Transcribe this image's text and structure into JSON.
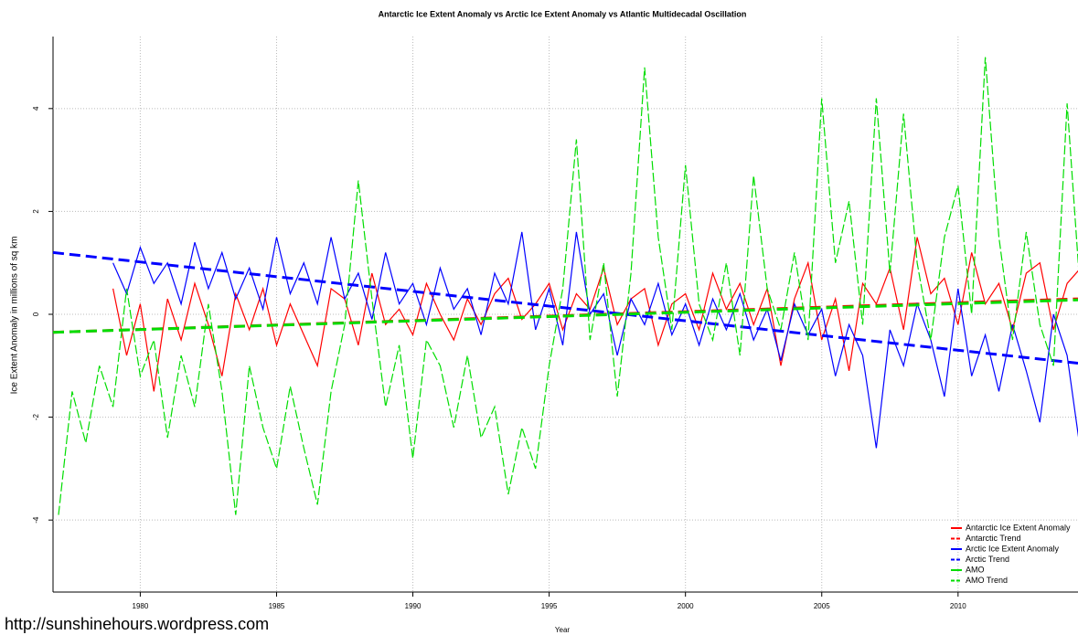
{
  "chart_data": {
    "type": "line",
    "title": "Antarctic Ice Extent Anomaly vs Arctic Ice Extent Anomaly vs Atlantic Multidecadal Oscillation",
    "xlabel": "Year",
    "ylabel": "Ice Extent Anomaly in millions of sq km",
    "annotation": "http://sunshinehours.wordpress.com",
    "xlim": [
      1976.8,
      2014.4
    ],
    "ylim": [
      -5.4,
      5.4
    ],
    "xticks": [
      1980,
      1985,
      1990,
      1995,
      2000,
      2005,
      2010
    ],
    "yticks": [
      -4,
      -2,
      0,
      2,
      4
    ],
    "grid": true,
    "legend": "bottom-right",
    "x": [
      1977,
      1977.5,
      1978,
      1978.5,
      1979,
      1979.5,
      1980,
      1980.5,
      1981,
      1981.5,
      1982,
      1982.5,
      1983,
      1983.5,
      1984,
      1984.5,
      1985,
      1985.5,
      1986,
      1986.5,
      1987,
      1987.5,
      1988,
      1988.5,
      1989,
      1989.5,
      1990,
      1990.5,
      1991,
      1991.5,
      1992,
      1992.5,
      1993,
      1993.5,
      1994,
      1994.5,
      1995,
      1995.5,
      1996,
      1996.5,
      1997,
      1997.5,
      1998,
      1998.5,
      1999,
      1999.5,
      2000,
      2000.5,
      2001,
      2001.5,
      2002,
      2002.5,
      2003,
      2003.5,
      2004,
      2004.5,
      2005,
      2005.5,
      2006,
      2006.5,
      2007,
      2007.5,
      2008,
      2008.5,
      2009,
      2009.5,
      2010,
      2010.5,
      2011,
      2011.5,
      2012,
      2012.5,
      2013,
      2013.5,
      2014,
      2014.5
    ],
    "series": [
      {
        "name": "Antarctic Ice Extent Anomaly",
        "color": "#ff0000",
        "dash": false,
        "values": [
          null,
          null,
          null,
          null,
          0.5,
          -0.8,
          0.2,
          -1.5,
          0.3,
          -0.5,
          0.6,
          -0.2,
          -1.2,
          0.4,
          -0.3,
          0.5,
          -0.6,
          0.2,
          -0.4,
          -1.0,
          0.5,
          0.3,
          -0.6,
          0.8,
          -0.2,
          0.1,
          -0.4,
          0.6,
          0.0,
          -0.5,
          0.3,
          -0.2,
          0.4,
          0.7,
          -0.1,
          0.2,
          0.6,
          -0.3,
          0.4,
          0.1,
          0.9,
          -0.2,
          0.3,
          0.5,
          -0.6,
          0.2,
          0.4,
          -0.3,
          0.8,
          0.1,
          0.6,
          -0.2,
          0.5,
          -1.0,
          0.3,
          1.0,
          -0.5,
          0.3,
          -1.1,
          0.6,
          0.2,
          0.9,
          -0.3,
          1.5,
          0.4,
          0.7,
          -0.2,
          1.2,
          0.2,
          0.6,
          -0.3,
          0.8,
          1.0,
          -0.3,
          0.6,
          0.9
        ]
      },
      {
        "name": "Antarctic Trend",
        "color": "#ff0000",
        "dash": true,
        "x": [
          1976.8,
          2014.4
        ],
        "values": [
          -0.35,
          0.3
        ]
      },
      {
        "name": "Arctic Ice Extent Anomaly",
        "color": "#0000ff",
        "dash": false,
        "values": [
          null,
          null,
          null,
          null,
          1.0,
          0.4,
          1.3,
          0.6,
          1.0,
          0.2,
          1.4,
          0.5,
          1.2,
          0.3,
          0.9,
          0.1,
          1.5,
          0.4,
          1.0,
          0.2,
          1.5,
          0.3,
          0.8,
          -0.1,
          1.2,
          0.2,
          0.6,
          -0.2,
          0.9,
          0.1,
          0.5,
          -0.4,
          0.8,
          0.2,
          1.6,
          -0.3,
          0.5,
          -0.6,
          1.6,
          0.0,
          0.4,
          -0.8,
          0.3,
          -0.2,
          0.6,
          -0.4,
          0.2,
          -0.6,
          0.3,
          -0.3,
          0.4,
          -0.5,
          0.1,
          -0.9,
          0.2,
          -0.4,
          0.1,
          -1.2,
          -0.2,
          -0.8,
          -2.6,
          -0.3,
          -1.0,
          0.2,
          -0.5,
          -1.6,
          0.5,
          -1.2,
          -0.4,
          -1.5,
          -0.2,
          -1.1,
          -2.1,
          0.0,
          -0.8,
          -2.7
        ]
      },
      {
        "name": "Arctic Trend",
        "color": "#0000ff",
        "dash": true,
        "x": [
          1976.8,
          2014.4
        ],
        "values": [
          1.2,
          -0.95
        ]
      },
      {
        "name": "AMO",
        "color": "#00dd00",
        "dash": false,
        "values": [
          -3.9,
          -1.5,
          -2.5,
          -1.0,
          -1.8,
          0.5,
          -1.2,
          -0.5,
          -2.4,
          -0.8,
          -1.8,
          0.2,
          -1.5,
          -3.9,
          -1.0,
          -2.2,
          -3.0,
          -1.4,
          -2.6,
          -3.7,
          -1.5,
          -0.2,
          2.6,
          0.3,
          -1.8,
          -0.6,
          -2.8,
          -0.5,
          -1.0,
          -2.2,
          -0.8,
          -2.4,
          -1.8,
          -3.5,
          -2.2,
          -3.0,
          -1.0,
          0.5,
          3.4,
          -0.5,
          1.0,
          -1.6,
          0.8,
          4.8,
          1.5,
          -0.3,
          2.9,
          0.2,
          -0.5,
          1.0,
          -0.8,
          2.7,
          0.5,
          -0.3,
          1.2,
          -0.5,
          4.2,
          1.0,
          2.2,
          -0.2,
          4.2,
          0.8,
          3.9,
          1.0,
          -0.5,
          1.5,
          2.5,
          0.0,
          5.0,
          1.5,
          -0.5,
          1.6,
          -0.2,
          -1.0,
          4.1,
          0.3
        ]
      },
      {
        "name": "AMO Trend",
        "color": "#00dd00",
        "dash": true,
        "x": [
          1976.8,
          2014.4
        ],
        "values": [
          -0.35,
          0.28
        ]
      }
    ]
  }
}
